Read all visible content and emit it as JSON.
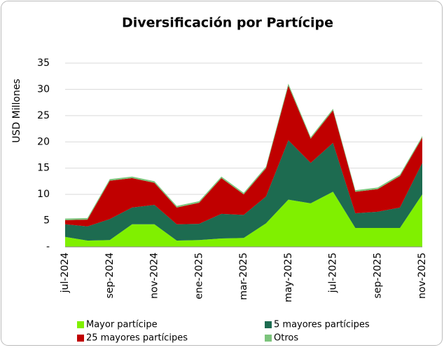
{
  "chart_data": {
    "type": "stacked_area",
    "title": "Diversificación por Partícipe",
    "y_label": "USD Millones",
    "categories": [
      "jul-2024",
      null,
      "sep-2024",
      null,
      "nov-2024",
      null,
      "ene-2025",
      null,
      "mar-2025",
      null,
      "may-2025",
      null,
      "jul-2025",
      null,
      "sep-2025",
      null,
      "nov-2025"
    ],
    "series": [
      {
        "name": "Mayor partícipe",
        "color": "#80f000",
        "values": [
          1.9,
          1.2,
          1.3,
          4.3,
          4.3,
          1.2,
          1.3,
          1.6,
          1.7,
          4.5,
          9.0,
          8.3,
          10.5,
          3.6,
          3.6,
          3.6,
          10.0
        ]
      },
      {
        "name": "5 mayores partícipes",
        "color": "#1d6b50",
        "values": [
          2.4,
          2.7,
          4.0,
          3.2,
          3.7,
          3.1,
          3.1,
          4.7,
          4.4,
          5.1,
          11.3,
          7.7,
          9.3,
          2.8,
          3.1,
          3.9,
          6.0
        ]
      },
      {
        "name": "25 mayores partícipes",
        "color": "#c00000",
        "values": [
          0.8,
          1.3,
          7.3,
          5.6,
          4.2,
          3.2,
          4.0,
          6.8,
          3.9,
          5.4,
          10.4,
          4.6,
          6.2,
          4.1,
          4.3,
          6.0,
          4.8
        ]
      },
      {
        "name": "Otros",
        "color": "#7cc47c",
        "values": [
          0.3,
          0.3,
          0.3,
          0.3,
          0.3,
          0.3,
          0.3,
          0.3,
          0.3,
          0.3,
          0.4,
          0.3,
          0.3,
          0.3,
          0.3,
          0.3,
          0.3
        ]
      }
    ],
    "ylim": [
      0,
      35
    ],
    "yticks": [
      {
        "value": 0,
        "label": "-"
      },
      5,
      10,
      15,
      20,
      25,
      30,
      35
    ],
    "grid": true,
    "legend": "bottom"
  }
}
